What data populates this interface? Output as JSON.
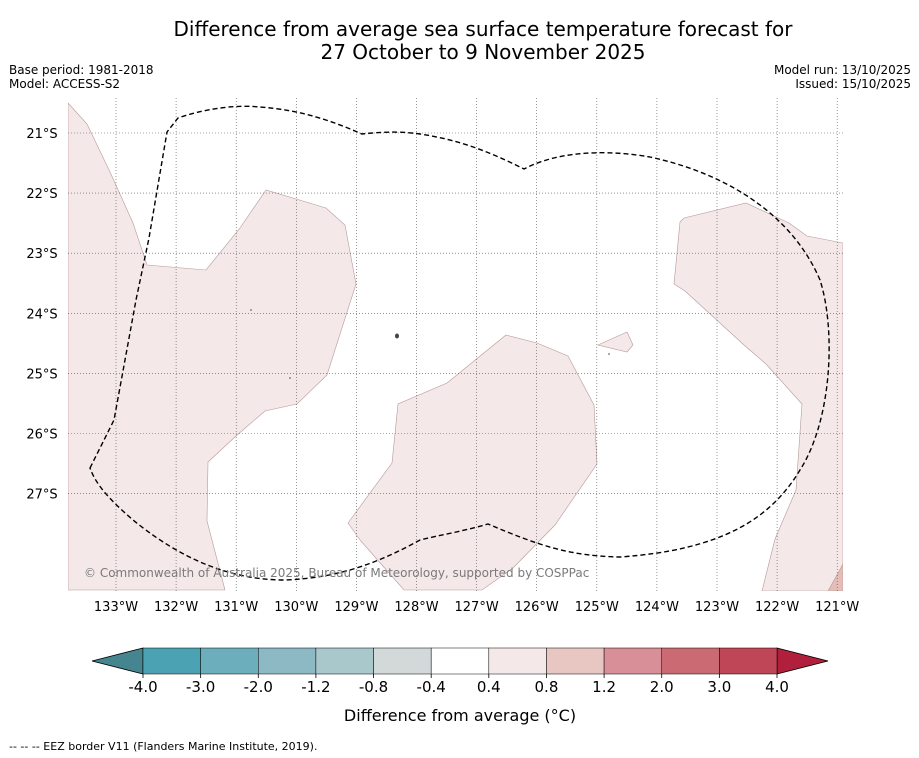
{
  "title": {
    "line1": "Difference from average sea surface temperature forecast for",
    "line2": "27 October to 9 November 2025"
  },
  "meta": {
    "base_period": "Base period: 1981-2018",
    "model": "Model: ACCESS-S2",
    "model_run": "Model run: 13/10/2025",
    "issued": "Issued: 15/10/2025"
  },
  "map": {
    "lat_labels": [
      "21°S",
      "22°S",
      "23°S",
      "24°S",
      "25°S",
      "26°S",
      "27°S"
    ],
    "lon_labels": [
      "133°W",
      "132°W",
      "131°W",
      "130°W",
      "129°W",
      "128°W",
      "127°W",
      "126°W",
      "125°W",
      "124°W",
      "123°W",
      "122°W",
      "121°W"
    ],
    "copyright": "© Commonwealth of Australia 2025, Bureau of Meteorology, supported by COSPPac",
    "anomaly_fill_color": "#f5e8e8",
    "high_anomaly_color": "#e4bdb8"
  },
  "colorbar": {
    "tick_labels": [
      "-4.0",
      "-3.0",
      "-2.0",
      "-1.2",
      "-0.8",
      "-0.4",
      "0.4",
      "0.8",
      "1.2",
      "2.0",
      "3.0",
      "4.0"
    ],
    "colors": [
      "#4aa2b3",
      "#6daebd",
      "#8cb9c4",
      "#a9c8cc",
      "#d3d8d9",
      "#ffffff",
      "#f5e8e8",
      "#e8c6c2",
      "#d98f98",
      "#cc6a73",
      "#bf4657"
    ],
    "under_color": "#448590",
    "over_color": "#b01f3c",
    "label": "Difference from average (°C)"
  },
  "footer": "--  --  -- EEZ border V11 (Flanders Marine Institute, 2019)."
}
